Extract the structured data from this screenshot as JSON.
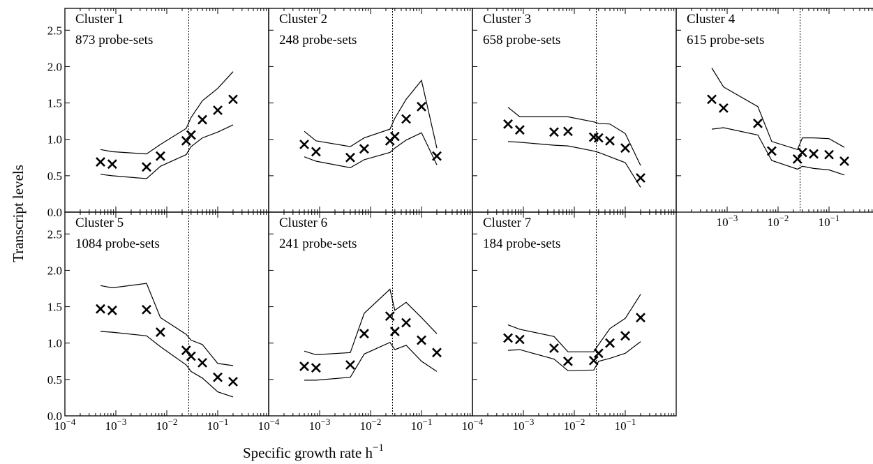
{
  "figure": {
    "ylabel": "Transcript levels",
    "xlabel_main": "Specific growth rate h",
    "xlabel_sup": "−1"
  },
  "chart_data": {
    "type": "line",
    "xscale": "log",
    "xlim": [
      0.0001,
      1
    ],
    "ylim": [
      0.0,
      2.8
    ],
    "y_ticks": [
      0.0,
      0.5,
      1.0,
      1.5,
      2.0,
      2.5
    ],
    "y_tick_labels": [
      "0.0",
      "0.5",
      "1.0",
      "1.5",
      "2.0",
      "2.5"
    ],
    "x_tick_labels": [
      {
        "base": "10",
        "exp": "−4"
      },
      {
        "base": "10",
        "exp": "−3"
      },
      {
        "base": "10",
        "exp": "−2"
      },
      {
        "base": "10",
        "exp": "−1"
      }
    ],
    "x_ticks": [
      0.0001,
      0.001,
      0.01,
      0.1
    ],
    "reference_line_x": 0.027,
    "marker": "x",
    "panels": [
      {
        "title": "Cluster 1",
        "subtitle": "873 probe-sets",
        "x": [
          0.0005,
          0.00085,
          0.004,
          0.0075,
          0.024,
          0.03,
          0.05,
          0.1,
          0.2
        ],
        "mean": [
          0.69,
          0.66,
          0.62,
          0.77,
          0.98,
          1.06,
          1.27,
          1.4,
          1.55
        ],
        "upper": [
          0.86,
          0.83,
          0.8,
          0.93,
          1.15,
          1.3,
          1.53,
          1.7,
          1.93
        ],
        "lower": [
          0.52,
          0.5,
          0.46,
          0.63,
          0.79,
          0.9,
          1.02,
          1.1,
          1.2
        ]
      },
      {
        "title": "Cluster 2",
        "subtitle": "248 probe-sets",
        "x": [
          0.0005,
          0.00085,
          0.004,
          0.0075,
          0.024,
          0.03,
          0.05,
          0.1,
          0.2
        ],
        "mean": [
          0.93,
          0.83,
          0.75,
          0.87,
          0.98,
          1.04,
          1.28,
          1.45,
          0.77
        ],
        "upper": [
          1.11,
          0.98,
          0.9,
          1.02,
          1.14,
          1.29,
          1.55,
          1.81,
          0.88
        ],
        "lower": [
          0.76,
          0.7,
          0.61,
          0.72,
          0.82,
          0.88,
          0.99,
          1.09,
          0.65
        ]
      },
      {
        "title": "Cluster 3",
        "subtitle": "658 probe-sets",
        "x": [
          0.0005,
          0.00085,
          0.004,
          0.0075,
          0.024,
          0.03,
          0.05,
          0.1,
          0.2
        ],
        "mean": [
          1.21,
          1.13,
          1.1,
          1.11,
          1.03,
          1.02,
          0.98,
          0.88,
          0.47
        ],
        "upper": [
          1.44,
          1.31,
          1.31,
          1.31,
          1.24,
          1.22,
          1.21,
          1.08,
          0.64
        ],
        "lower": [
          0.97,
          0.96,
          0.92,
          0.91,
          0.84,
          0.82,
          0.76,
          0.68,
          0.34
        ]
      },
      {
        "title": "Cluster 4",
        "subtitle": "615 probe-sets",
        "x": [
          0.0005,
          0.00085,
          0.004,
          0.0075,
          0.024,
          0.03,
          0.05,
          0.1,
          0.2
        ],
        "mean": [
          1.55,
          1.43,
          1.22,
          0.84,
          0.73,
          0.82,
          0.8,
          0.79,
          0.7
        ],
        "upper": [
          1.98,
          1.72,
          1.45,
          0.97,
          0.86,
          1.02,
          1.02,
          1.01,
          0.89
        ],
        "lower": [
          1.14,
          1.16,
          1.06,
          0.71,
          0.59,
          0.63,
          0.6,
          0.58,
          0.51
        ]
      },
      {
        "title": "Cluster 5",
        "subtitle": "1084 probe-sets",
        "x": [
          0.0005,
          0.00085,
          0.004,
          0.0075,
          0.024,
          0.03,
          0.05,
          0.1,
          0.2
        ],
        "mean": [
          1.47,
          1.45,
          1.46,
          1.15,
          0.9,
          0.82,
          0.73,
          0.53,
          0.47
        ],
        "upper": [
          1.79,
          1.76,
          1.82,
          1.35,
          1.12,
          1.04,
          0.98,
          0.72,
          0.69
        ],
        "lower": [
          1.16,
          1.15,
          1.1,
          0.95,
          0.7,
          0.61,
          0.52,
          0.33,
          0.26
        ]
      },
      {
        "title": "Cluster 6",
        "subtitle": "241 probe-sets",
        "x": [
          0.0005,
          0.00085,
          0.004,
          0.0075,
          0.024,
          0.03,
          0.05,
          0.1,
          0.2
        ],
        "mean": [
          0.68,
          0.66,
          0.7,
          1.13,
          1.37,
          1.16,
          1.28,
          1.04,
          0.87
        ],
        "upper": [
          0.89,
          0.84,
          0.87,
          1.41,
          1.74,
          1.45,
          1.56,
          1.35,
          1.13
        ],
        "lower": [
          0.49,
          0.49,
          0.53,
          0.85,
          1.01,
          0.91,
          0.97,
          0.75,
          0.61
        ]
      },
      {
        "title": "Cluster 7",
        "subtitle": "184 probe-sets",
        "x": [
          0.0005,
          0.00085,
          0.004,
          0.0075,
          0.024,
          0.03,
          0.05,
          0.1,
          0.2
        ],
        "mean": [
          1.07,
          1.05,
          0.93,
          0.75,
          0.76,
          0.86,
          1.0,
          1.1,
          1.35
        ],
        "upper": [
          1.25,
          1.19,
          1.09,
          0.88,
          0.88,
          0.98,
          1.2,
          1.34,
          1.67
        ],
        "lower": [
          0.9,
          0.91,
          0.78,
          0.62,
          0.63,
          0.75,
          0.79,
          0.86,
          1.02
        ]
      }
    ]
  }
}
